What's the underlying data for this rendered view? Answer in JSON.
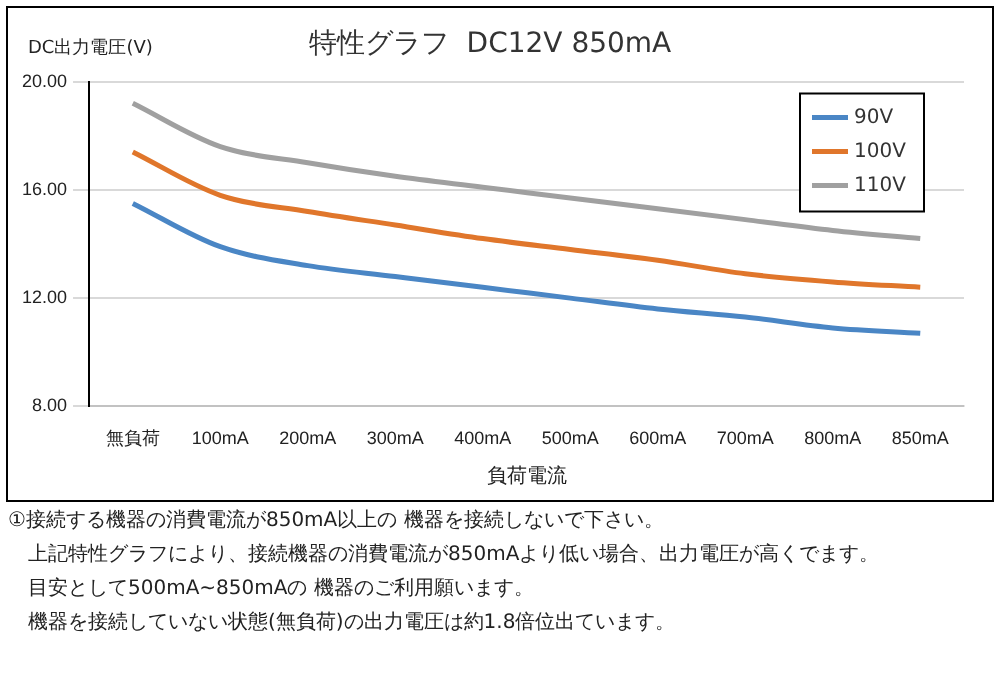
{
  "chart_data": {
    "type": "line",
    "title": "特性グラフ  DC12V 850mA",
    "ylabel": "DC出力電圧(V)",
    "xlabel": "負荷電流",
    "categories": [
      "無負荷",
      "100mA",
      "200mA",
      "300mA",
      "400mA",
      "500mA",
      "600mA",
      "700mA",
      "800mA",
      "850mA"
    ],
    "series": [
      {
        "name": "90V",
        "color": "#4a86c5",
        "values": [
          15.5,
          13.9,
          13.2,
          12.8,
          12.4,
          12.0,
          11.6,
          11.3,
          10.9,
          10.7
        ]
      },
      {
        "name": "100V",
        "color": "#e0762b",
        "values": [
          17.4,
          15.8,
          15.2,
          14.7,
          14.2,
          13.8,
          13.4,
          12.9,
          12.6,
          12.4
        ]
      },
      {
        "name": "110V",
        "color": "#a0a0a0",
        "values": [
          19.2,
          17.6,
          17.0,
          16.5,
          16.1,
          15.7,
          15.3,
          14.9,
          14.5,
          14.2
        ]
      }
    ],
    "ylim": [
      8,
      20
    ],
    "yticks": [
      {
        "value": 8,
        "label": "8.00"
      },
      {
        "value": 12,
        "label": "12.00"
      },
      {
        "value": 16,
        "label": "16.00"
      },
      {
        "value": 20,
        "label": "20.00"
      }
    ],
    "grid": "y",
    "legend": "top right",
    "marker": "none",
    "line_style": "solid",
    "annotations": [
      "①接続する機器の消費電流が850mA以上の 機器を接続しないで下さい。",
      "上記特性グラフにより、接続機器の消費電流が850mAより低い場合、出力電圧が高くでます。",
      "目安として500mA~850mAの 機器のご利用願います。",
      "機器を接続していない状態(無負荷)の出力電圧は約1.8倍位出ています。"
    ]
  }
}
